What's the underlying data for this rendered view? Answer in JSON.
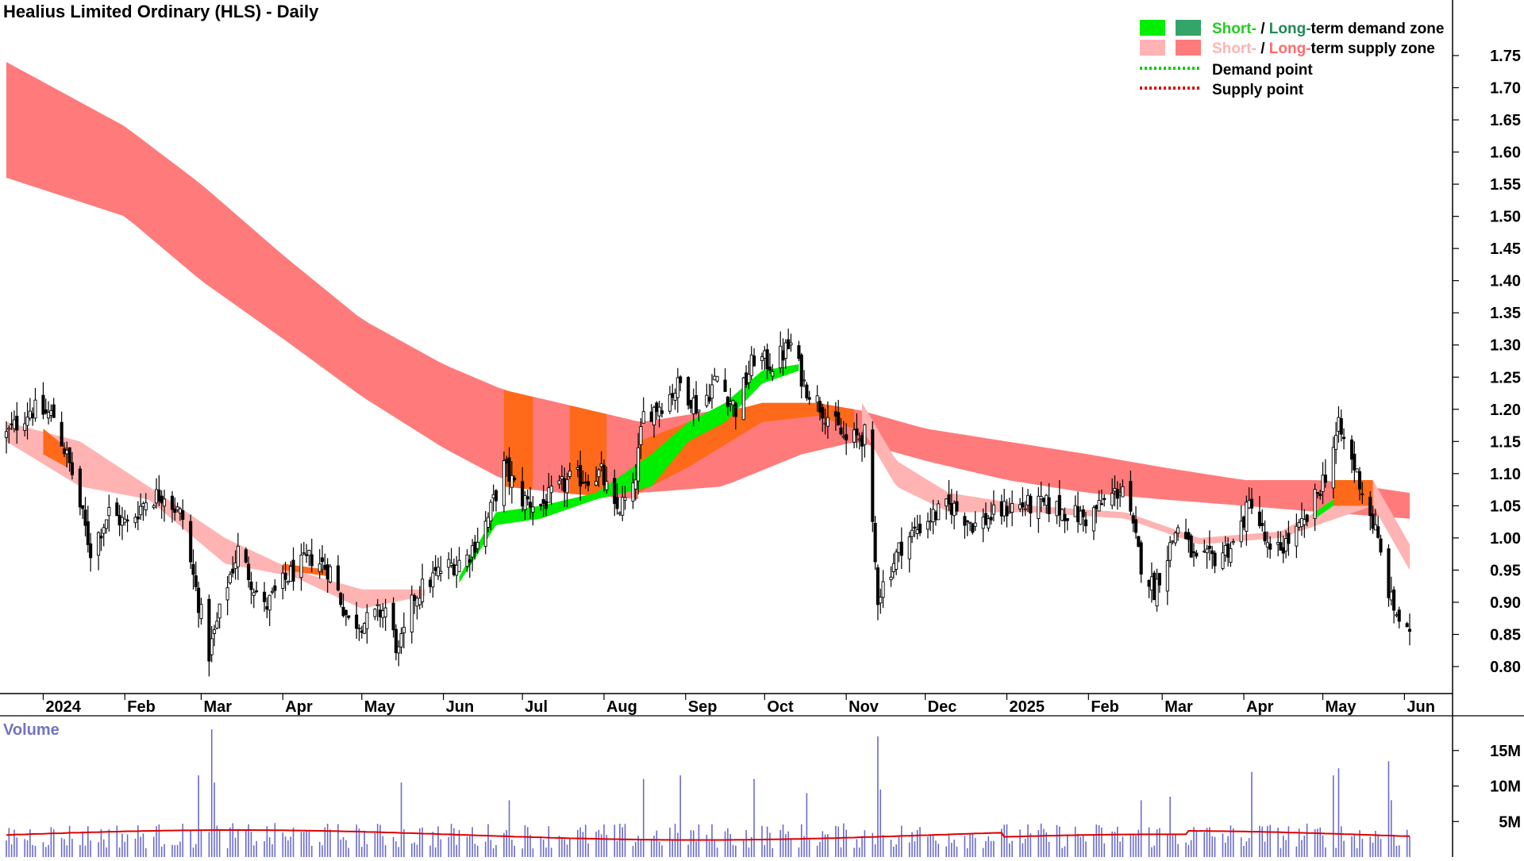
{
  "chart_data": {
    "type": "candlestick",
    "title": "Healius Limited Ordinary (HLS) - Daily",
    "colors": {
      "short_demand": "#00ee00",
      "long_demand": "#33a56b",
      "short_supply": "#ffb3b3",
      "long_supply": "#ff7b7b",
      "overlap": "#ff6a1a",
      "demand_point": "#00cc00",
      "supply_point": "#dd0000",
      "volume_bar": "#6b6bd0",
      "volume_avg": "#e00000",
      "volume_title": "#7373c0"
    },
    "price_axis": {
      "ylim": [
        0.76,
        1.78
      ],
      "ticks": [
        "1.75",
        "1.70",
        "1.65",
        "1.60",
        "1.55",
        "1.50",
        "1.45",
        "1.40",
        "1.35",
        "1.30",
        "1.25",
        "1.20",
        "1.15",
        "1.10",
        "1.05",
        "1.00",
        "0.95",
        "0.90",
        "0.85",
        "0.80"
      ]
    },
    "x_axis": {
      "months": [
        {
          "label": "2024",
          "date": "2024-01-01"
        },
        {
          "label": "Feb",
          "date": "2024-02-01"
        },
        {
          "label": "Mar",
          "date": "2024-03-01"
        },
        {
          "label": "Apr",
          "date": "2024-04-01"
        },
        {
          "label": "May",
          "date": "2024-05-01"
        },
        {
          "label": "Jun",
          "date": "2024-06-01"
        },
        {
          "label": "Jul",
          "date": "2024-07-01"
        },
        {
          "label": "Aug",
          "date": "2024-08-01"
        },
        {
          "label": "Sep",
          "date": "2024-09-01"
        },
        {
          "label": "Oct",
          "date": "2024-10-01"
        },
        {
          "label": "Nov",
          "date": "2024-11-01"
        },
        {
          "label": "Dec",
          "date": "2024-12-01"
        },
        {
          "label": "2025",
          "date": "2025-01-01"
        },
        {
          "label": "Feb",
          "date": "2025-02-01"
        },
        {
          "label": "Mar",
          "date": "2025-03-01"
        },
        {
          "label": "Apr",
          "date": "2025-04-01"
        },
        {
          "label": "May",
          "date": "2025-05-01"
        },
        {
          "label": "Jun",
          "date": "2025-06-01"
        }
      ],
      "start_date": "2023-12-18",
      "end_date": "2025-06-03"
    },
    "close_anchors": [
      [
        "2023-12-18",
        1.16
      ],
      [
        "2023-12-27",
        1.2
      ],
      [
        "2024-01-05",
        1.19
      ],
      [
        "2024-01-12",
        1.1
      ],
      [
        "2024-01-19",
        0.98
      ],
      [
        "2024-01-26",
        1.04
      ],
      [
        "2024-02-02",
        1.02
      ],
      [
        "2024-02-09",
        1.06
      ],
      [
        "2024-02-16",
        1.07
      ],
      [
        "2024-02-23",
        1.03
      ],
      [
        "2024-02-26",
        0.96
      ],
      [
        "2024-03-01",
        0.88
      ],
      [
        "2024-03-04",
        0.82
      ],
      [
        "2024-03-11",
        0.93
      ],
      [
        "2024-03-15",
        0.98
      ],
      [
        "2024-03-25",
        0.89
      ],
      [
        "2024-04-03",
        0.94
      ],
      [
        "2024-04-12",
        0.97
      ],
      [
        "2024-04-19",
        0.95
      ],
      [
        "2024-04-26",
        0.87
      ],
      [
        "2024-05-03",
        0.87
      ],
      [
        "2024-05-10",
        0.89
      ],
      [
        "2024-05-15",
        0.82
      ],
      [
        "2024-05-21",
        0.91
      ],
      [
        "2024-05-31",
        0.95
      ],
      [
        "2024-06-10",
        0.97
      ],
      [
        "2024-06-18",
        1.03
      ],
      [
        "2024-06-24",
        1.11
      ],
      [
        "2024-07-01",
        1.06
      ],
      [
        "2024-07-08",
        1.05
      ],
      [
        "2024-07-19",
        1.09
      ],
      [
        "2024-07-31",
        1.1
      ],
      [
        "2024-08-05",
        1.04
      ],
      [
        "2024-08-12",
        1.07
      ],
      [
        "2024-08-16",
        1.19
      ],
      [
        "2024-08-23",
        1.21
      ],
      [
        "2024-08-30",
        1.24
      ],
      [
        "2024-09-06",
        1.2
      ],
      [
        "2024-09-13",
        1.25
      ],
      [
        "2024-09-20",
        1.2
      ],
      [
        "2024-09-27",
        1.28
      ],
      [
        "2024-10-04",
        1.27
      ],
      [
        "2024-10-11",
        1.3
      ],
      [
        "2024-10-16",
        1.24
      ],
      [
        "2024-10-25",
        1.19
      ],
      [
        "2024-11-01",
        1.15
      ],
      [
        "2024-11-08",
        1.16
      ],
      [
        "2024-11-13",
        0.91
      ],
      [
        "2024-11-22",
        0.99
      ],
      [
        "2024-12-02",
        1.03
      ],
      [
        "2024-12-11",
        1.05
      ],
      [
        "2024-12-20",
        1.02
      ],
      [
        "2025-01-03",
        1.05
      ],
      [
        "2025-01-17",
        1.05
      ],
      [
        "2025-01-31",
        1.03
      ],
      [
        "2025-02-14",
        1.08
      ],
      [
        "2025-02-21",
        0.96
      ],
      [
        "2025-02-26",
        0.92
      ],
      [
        "2025-03-07",
        1.02
      ],
      [
        "2025-03-14",
        0.96
      ],
      [
        "2025-03-21",
        0.97
      ],
      [
        "2025-03-28",
        0.99
      ],
      [
        "2025-04-04",
        1.06
      ],
      [
        "2025-04-11",
        0.97
      ],
      [
        "2025-04-24",
        1.02
      ],
      [
        "2025-05-02",
        1.1
      ],
      [
        "2025-05-07",
        1.17
      ],
      [
        "2025-05-14",
        1.1
      ],
      [
        "2025-05-21",
        1.01
      ],
      [
        "2025-05-27",
        0.9
      ],
      [
        "2025-06-03",
        0.84
      ]
    ],
    "long_supply_zone": [
      [
        "2023-12-18",
        1.56,
        1.74
      ],
      [
        "2024-02-01",
        1.5,
        1.64
      ],
      [
        "2024-03-01",
        1.4,
        1.55
      ],
      [
        "2024-04-01",
        1.31,
        1.44
      ],
      [
        "2024-05-01",
        1.22,
        1.34
      ],
      [
        "2024-06-01",
        1.14,
        1.27
      ],
      [
        "2024-06-24",
        1.09,
        1.23
      ],
      [
        "2024-07-15",
        1.08,
        1.21
      ],
      [
        "2024-08-15",
        1.07,
        1.18
      ],
      [
        "2024-09-15",
        1.08,
        1.2
      ],
      [
        "2024-10-15",
        1.13,
        1.21
      ],
      [
        "2024-11-05",
        1.15,
        1.2
      ],
      [
        "2024-12-01",
        1.12,
        1.17
      ],
      [
        "2025-01-01",
        1.09,
        1.15
      ],
      [
        "2025-02-01",
        1.07,
        1.13
      ],
      [
        "2025-03-01",
        1.06,
        1.11
      ],
      [
        "2025-04-01",
        1.05,
        1.09
      ],
      [
        "2025-05-01",
        1.04,
        1.09
      ],
      [
        "2025-06-03",
        1.03,
        1.07
      ]
    ],
    "short_supply_zone": [
      [
        "2023-12-18",
        1.15,
        1.18
      ],
      [
        "2024-01-15",
        1.08,
        1.15
      ],
      [
        "2024-02-10",
        1.06,
        1.08
      ],
      [
        "2024-03-10",
        0.96,
        1.0
      ],
      [
        "2024-04-05",
        0.94,
        0.95
      ],
      [
        "2024-05-01",
        0.89,
        0.92
      ],
      [
        "2024-05-25",
        0.91,
        0.92
      ],
      [
        "2024-11-07",
        1.17,
        1.21
      ],
      [
        "2024-11-20",
        1.08,
        1.12
      ],
      [
        "2024-12-10",
        1.04,
        1.07
      ],
      [
        "2025-01-10",
        1.04,
        1.05
      ],
      [
        "2025-02-15",
        1.03,
        1.04
      ],
      [
        "2025-03-15",
        0.99,
        1.0
      ],
      [
        "2025-04-15",
        1.0,
        1.01
      ],
      [
        "2025-05-20",
        1.05,
        1.09
      ],
      [
        "2025-06-03",
        0.95,
        0.99
      ]
    ],
    "short_demand_zone": [
      [
        "2024-06-07",
        0.93,
        0.94
      ],
      [
        "2024-06-21",
        1.02,
        1.04
      ],
      [
        "2024-07-08",
        1.03,
        1.05
      ],
      [
        "2024-07-29",
        1.06,
        1.07
      ],
      [
        "2024-08-19",
        1.08,
        1.13
      ],
      [
        "2024-09-02",
        1.15,
        1.18
      ],
      [
        "2024-09-16",
        1.18,
        1.21
      ],
      [
        "2024-09-30",
        1.24,
        1.26
      ],
      [
        "2024-10-14",
        1.26,
        1.27
      ],
      [
        "2025-04-28",
        1.03,
        1.04
      ],
      [
        "2025-05-12",
        1.07,
        1.08
      ]
    ],
    "overlap_zone": [
      [
        "2024-08-14",
        1.07,
        1.15
      ],
      [
        "2024-09-02",
        1.11,
        1.18
      ],
      [
        "2024-09-30",
        1.18,
        1.21
      ],
      [
        "2024-10-21",
        1.19,
        1.21
      ],
      [
        "2024-11-04",
        1.17,
        1.2
      ]
    ],
    "legend": [
      {
        "short": "Short-",
        "sep": " / ",
        "long": "Long-",
        "rest": "term demand zone"
      },
      {
        "short": "Short-",
        "sep": " / ",
        "long": "Long-",
        "rest": "term supply zone"
      },
      {
        "label": "Demand point"
      },
      {
        "label": "Supply point"
      }
    ],
    "volume": {
      "title": "Volume",
      "ticks": [
        "15M",
        "10M",
        "5M"
      ],
      "ylim": [
        0,
        19000000
      ],
      "avg": 3500000,
      "spikes": [
        [
          "2024-02-29",
          11500000
        ],
        [
          "2024-03-05",
          18000000
        ],
        [
          "2024-03-06",
          10500000
        ],
        [
          "2024-05-16",
          10500000
        ],
        [
          "2024-06-26",
          8000000
        ],
        [
          "2024-08-16",
          11000000
        ],
        [
          "2024-08-30",
          11500000
        ],
        [
          "2024-09-27",
          11000000
        ],
        [
          "2024-10-17",
          9000000
        ],
        [
          "2024-11-13",
          17000000
        ],
        [
          "2024-11-14",
          9500000
        ],
        [
          "2025-02-21",
          8000000
        ],
        [
          "2025-03-04",
          8500000
        ],
        [
          "2025-04-04",
          12000000
        ],
        [
          "2025-05-05",
          11500000
        ],
        [
          "2025-05-07",
          12500000
        ],
        [
          "2025-05-26",
          13500000
        ],
        [
          "2025-05-27",
          8000000
        ]
      ]
    }
  }
}
